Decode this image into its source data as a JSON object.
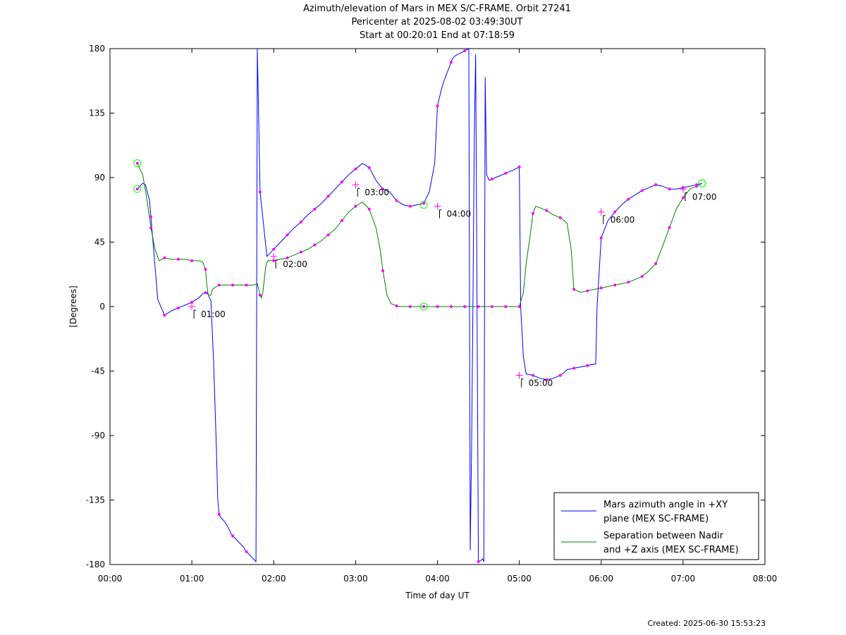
{
  "chart_data": {
    "type": "line",
    "title": "Azimuth/elevation of Mars in MEX S/C-FRAME.  Orbit 27241",
    "subtitle_1": "Pericenter at 2025-08-02 03:49:30UT",
    "subtitle_2": "Start at 00:20:01 End at 07:18:59",
    "xlabel": "Time of day UT",
    "ylabel": "[Degrees]",
    "xlim": [
      0,
      480
    ],
    "ylim": [
      -180,
      180
    ],
    "x_unit": "minutes after 00:00 UT",
    "x_ticks": [
      0,
      60,
      120,
      180,
      240,
      300,
      360,
      420,
      480
    ],
    "x_tick_labels": [
      "00:00",
      "01:00",
      "02:00",
      "03:00",
      "04:00",
      "05:00",
      "06:00",
      "07:00",
      "08:00"
    ],
    "y_ticks": [
      180,
      135,
      90,
      45,
      0,
      -45,
      -90,
      -135,
      -180
    ],
    "y_tick_labels": [
      "180",
      "135",
      "90",
      "45",
      "0",
      "-45",
      "-90",
      "-135",
      "-180"
    ],
    "grid": false,
    "legend_placement": "bottom-right",
    "series": [
      {
        "name": "Mars azimuth angle in +XY plane (MEX SC-FRAME)",
        "legend_lines": [
          "Mars azimuth angle in +XY",
          "plane (MEX SC-FRAME)"
        ],
        "color": "#0000ff",
        "x": [
          20,
          24,
          26,
          29,
          32,
          35,
          40,
          45,
          50,
          55,
          60,
          65,
          68,
          71,
          72,
          74,
          76,
          78,
          79,
          80,
          81,
          84,
          86,
          87,
          88,
          89,
          90,
          91,
          92,
          93,
          94,
          95,
          96,
          97,
          98,
          99,
          100,
          101,
          102,
          103,
          104,
          105,
          106,
          107,
          108,
          110,
          115,
          120,
          125,
          130,
          135,
          140,
          145,
          150,
          155,
          160,
          165,
          170,
          175,
          180,
          185,
          190,
          195,
          200,
          205,
          210,
          215,
          220,
          225,
          230,
          234,
          238,
          240,
          243,
          245,
          247,
          249,
          251,
          253,
          255,
          257,
          259,
          261,
          263,
          264,
          265,
          266,
          267,
          268,
          270,
          272,
          273,
          274,
          275,
          276,
          278,
          280,
          285,
          290,
          295,
          298,
          299,
          299.5,
          300,
          301,
          303,
          305,
          310,
          315,
          320,
          325,
          330,
          333,
          335,
          356,
          357,
          360,
          365,
          370,
          375,
          380,
          385,
          390,
          395,
          400,
          405,
          410,
          415,
          420,
          425,
          430,
          434
        ],
        "y": [
          82,
          86,
          85,
          74,
          40,
          5,
          -6,
          -3,
          -1,
          1,
          3,
          6,
          9,
          10,
          8,
          4,
          -40,
          -100,
          -135,
          -145,
          -147,
          -150,
          -153,
          -155,
          -157,
          -159,
          -160,
          -161,
          -162,
          -163,
          -164,
          -165,
          -166,
          -167,
          -168,
          -170,
          -171,
          -172,
          -173,
          -174,
          -175,
          -176,
          -177,
          -178,
          180,
          80,
          35,
          40,
          45,
          50,
          55,
          59,
          64,
          68,
          72,
          77,
          82,
          87,
          92,
          96,
          100,
          97,
          88,
          82,
          80,
          74,
          71,
          70,
          71,
          72,
          80,
          100,
          140,
          152,
          158,
          163,
          168,
          173,
          175,
          176,
          177,
          178,
          179,
          180,
          -170,
          -100,
          0,
          120,
          176,
          -178,
          -177,
          -176,
          -178,
          160,
          92,
          88,
          89,
          91,
          93,
          95,
          96.5,
          97,
          97.5,
          97.5,
          -1,
          -35,
          -47,
          -48,
          -50,
          -51,
          -50,
          -48,
          -46,
          -44,
          -40,
          0,
          48,
          60,
          66,
          71,
          75,
          78,
          81,
          83,
          85,
          84,
          82,
          82,
          83,
          84,
          85,
          86
        ]
      },
      {
        "name": "Separation between Nadir and +Z axis (MEX SC-FRAME)",
        "legend_lines": [
          "Separation between Nadir",
          "and +Z axis (MEX SC-FRAME)"
        ],
        "color": "#008000",
        "x": [
          20,
          24,
          27,
          30,
          33,
          36,
          40,
          45,
          50,
          55,
          60,
          65,
          68,
          70,
          71,
          72,
          74,
          75,
          78,
          80,
          85,
          90,
          95,
          100,
          105,
          108,
          109,
          110,
          111,
          112,
          113,
          114,
          115,
          116,
          118,
          120,
          125,
          130,
          135,
          140,
          145,
          150,
          155,
          160,
          165,
          170,
          175,
          180,
          185,
          190,
          195,
          198,
          200,
          203,
          206,
          210,
          213,
          215,
          220,
          230,
          240,
          250,
          260,
          270,
          280,
          290,
          298,
          300,
          303,
          305,
          308,
          310,
          312,
          315,
          320,
          325,
          330,
          333,
          335,
          338,
          340,
          345,
          350,
          355,
          360,
          365,
          370,
          375,
          380,
          385,
          390,
          395,
          400,
          405,
          410,
          415,
          420,
          425,
          430,
          434
        ],
        "y": [
          100,
          92,
          75,
          55,
          40,
          32,
          34,
          33,
          33,
          33,
          32,
          32,
          31,
          26,
          15,
          8,
          8,
          12,
          14,
          15,
          15,
          15,
          15,
          15,
          15,
          16,
          12,
          8,
          6,
          10,
          18,
          27,
          31,
          32,
          32,
          32,
          33,
          34,
          36,
          38,
          40,
          43,
          46,
          50,
          54,
          60,
          66,
          70,
          73,
          68,
          55,
          40,
          25,
          8,
          2,
          0.5,
          0,
          0,
          0,
          0,
          0,
          0,
          0,
          0,
          0,
          0,
          0,
          0,
          10,
          30,
          50,
          65,
          70,
          69,
          67,
          64,
          62,
          60,
          58,
          40,
          12,
          10,
          11,
          12,
          13,
          14,
          15,
          16,
          17,
          19,
          21,
          25,
          30,
          42,
          55,
          68,
          76,
          82,
          84,
          86
        ]
      }
    ],
    "annotations": [
      {
        "text": "01:00",
        "x": 60,
        "y": 0
      },
      {
        "text": "02:00",
        "x": 120,
        "y": 35
      },
      {
        "text": "03:00",
        "x": 180,
        "y": 85
      },
      {
        "text": "04:00",
        "x": 240,
        "y": 70
      },
      {
        "text": "05:00",
        "x": 300,
        "y": -48
      },
      {
        "text": "06:00",
        "x": 360,
        "y": 66
      },
      {
        "text": "07:00",
        "x": 420,
        "y": 82
      }
    ],
    "marker_color": "#ff00ff",
    "endpoint_color": "#00ff00",
    "created": "Created: 2025-06-30 15:53:23"
  }
}
